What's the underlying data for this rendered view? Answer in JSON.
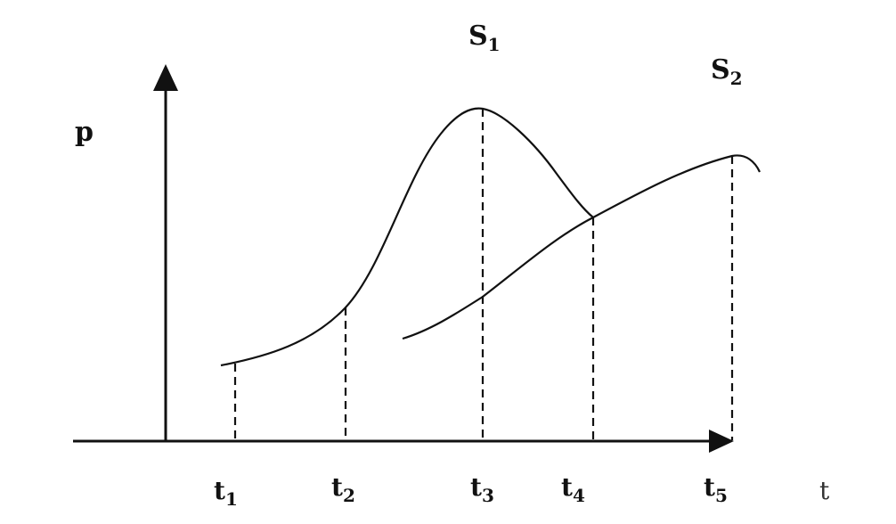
{
  "diagram": {
    "y_axis_label": "p",
    "x_axis_label": "t",
    "curves": [
      {
        "id": "S1",
        "label_main": "S",
        "label_sub": "1"
      },
      {
        "id": "S2",
        "label_main": "S",
        "label_sub": "2"
      }
    ],
    "time_markers": [
      {
        "main": "t",
        "sub": "1"
      },
      {
        "main": "t",
        "sub": "2"
      },
      {
        "main": "t",
        "sub": "3"
      },
      {
        "main": "t",
        "sub": "4"
      },
      {
        "main": "t",
        "sub": "5"
      }
    ],
    "line_style": {
      "stroke": "#111111",
      "dashed_guides": true
    }
  }
}
